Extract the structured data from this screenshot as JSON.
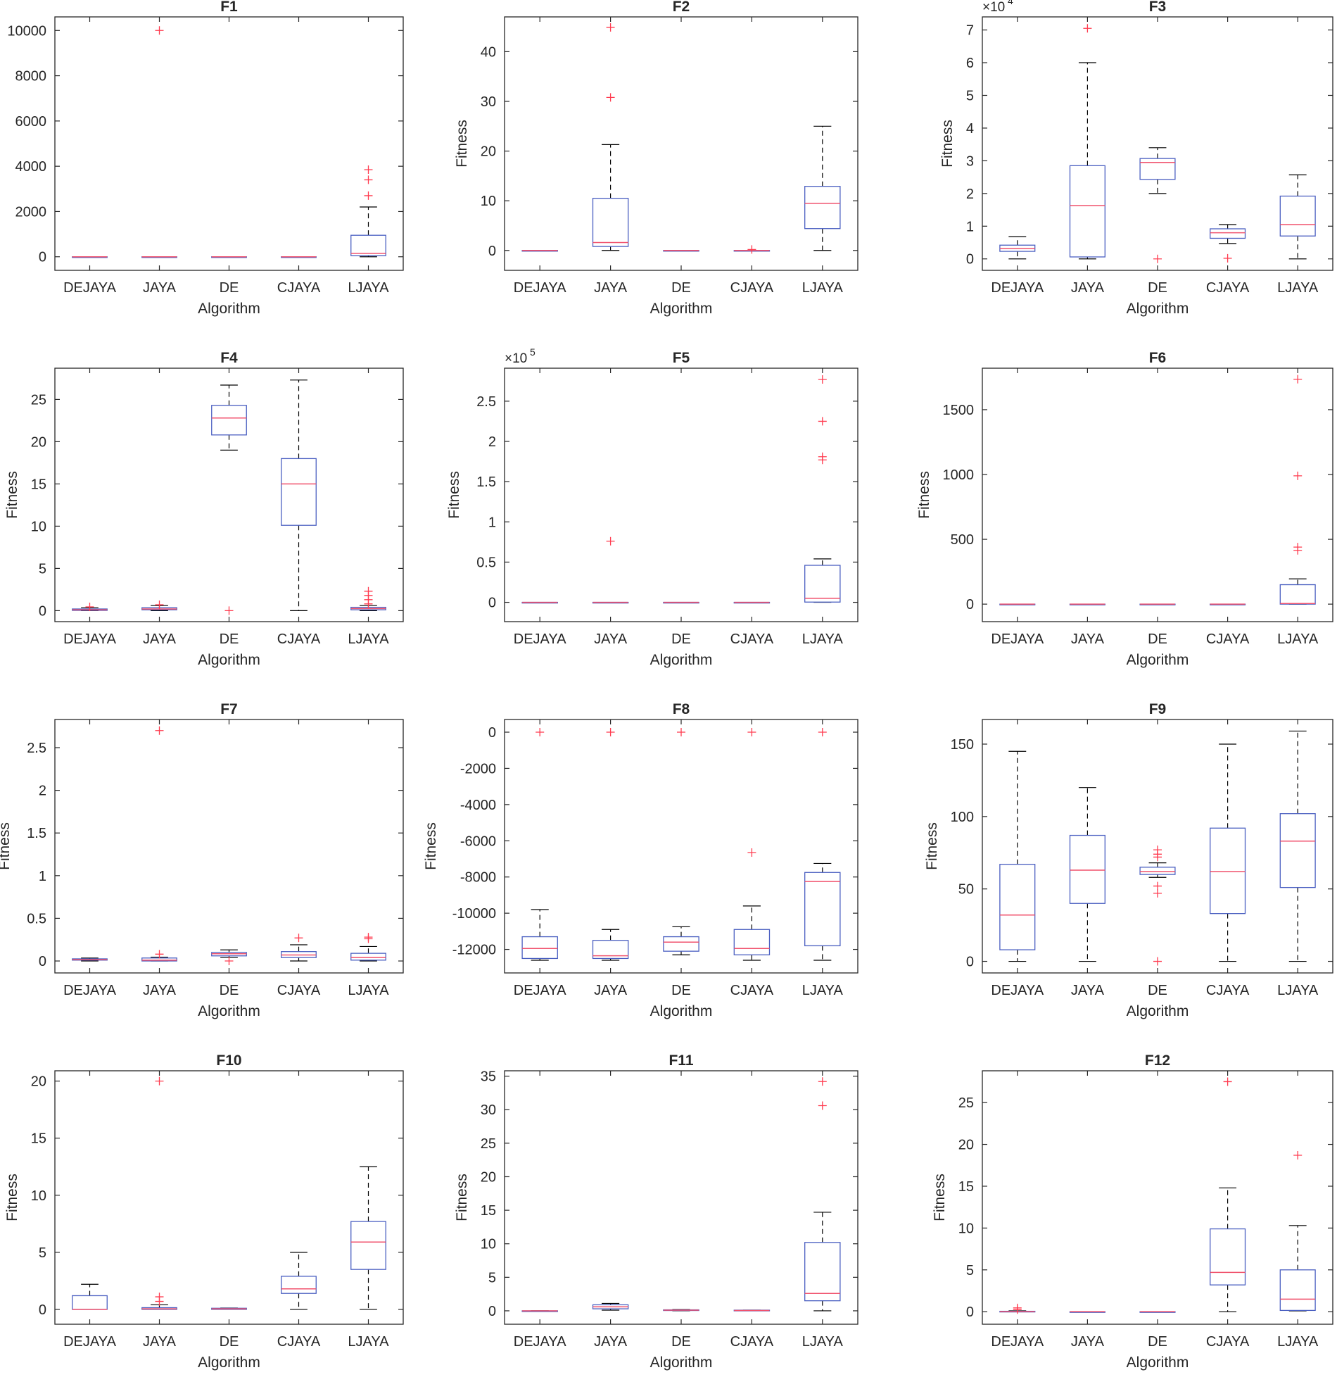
{
  "figure": {
    "xlabel": "Algorithm",
    "ylabel": "Fitness",
    "categories": [
      "DEJAYA",
      "JAYA",
      "DE",
      "CJAYA",
      "LJAYA"
    ]
  },
  "colors": {
    "box": "#4a5fc1",
    "median": "#f0526d",
    "outlier": "#ff3b4f",
    "whisker": "#000000",
    "axis": "#262626"
  },
  "chart_data": [
    {
      "type": "box",
      "title": "F1",
      "xlabel": "Algorithm",
      "ylabel": "Fitness",
      "categories": [
        "DEJAYA",
        "JAYA",
        "DE",
        "CJAYA",
        "LJAYA"
      ],
      "ylim": [
        -600,
        10600
      ],
      "yticks": [
        0,
        2000,
        4000,
        6000,
        8000,
        10000
      ],
      "ytick_labels": [
        "0",
        "2000",
        "4000",
        "6000",
        "8000",
        "10000"
      ],
      "exponent": "",
      "boxes": [
        {
          "min": 0,
          "q1": 0,
          "median": 0,
          "q3": 0,
          "max": 0,
          "outliers": []
        },
        {
          "min": 0,
          "q1": 0,
          "median": 0,
          "q3": 0,
          "max": 0,
          "outliers": [
            10000
          ]
        },
        {
          "min": 0,
          "q1": 0,
          "median": 0,
          "q3": 0,
          "max": 0,
          "outliers": []
        },
        {
          "min": 0,
          "q1": 0,
          "median": 0,
          "q3": 0,
          "max": 0,
          "outliers": []
        },
        {
          "min": 0,
          "q1": 50,
          "median": 150,
          "q3": 950,
          "max": 2200,
          "outliers": [
            2700,
            3400,
            3850
          ]
        }
      ]
    },
    {
      "type": "box",
      "title": "F2",
      "xlabel": "Algorithm",
      "ylabel": "Fitness",
      "categories": [
        "DEJAYA",
        "JAYA",
        "DE",
        "CJAYA",
        "LJAYA"
      ],
      "ylim": [
        -4,
        47
      ],
      "yticks": [
        0,
        10,
        20,
        30,
        40
      ],
      "ytick_labels": [
        "0",
        "10",
        "20",
        "30",
        "40"
      ],
      "exponent": "",
      "boxes": [
        {
          "min": 0,
          "q1": 0,
          "median": 0,
          "q3": 0,
          "max": 0,
          "outliers": []
        },
        {
          "min": 0,
          "q1": 0.8,
          "median": 1.6,
          "q3": 10.5,
          "max": 21.3,
          "outliers": [
            30.8,
            44.9
          ]
        },
        {
          "min": 0,
          "q1": 0,
          "median": 0,
          "q3": 0,
          "max": 0,
          "outliers": []
        },
        {
          "min": 0,
          "q1": 0,
          "median": 0,
          "q3": 0,
          "max": 0,
          "outliers": [
            0.2
          ]
        },
        {
          "min": 0,
          "q1": 4.4,
          "median": 9.5,
          "q3": 12.9,
          "max": 25,
          "outliers": []
        }
      ]
    },
    {
      "type": "box",
      "title": "F3",
      "xlabel": "Algorithm",
      "ylabel": "Fitness",
      "categories": [
        "DEJAYA",
        "JAYA",
        "DE",
        "CJAYA",
        "LJAYA"
      ],
      "ylim": [
        -3500,
        74000
      ],
      "yticks": [
        0,
        10000,
        20000,
        30000,
        40000,
        50000,
        60000,
        70000
      ],
      "ytick_labels": [
        "0",
        "1",
        "2",
        "3",
        "4",
        "5",
        "6",
        "7"
      ],
      "exponent": "4",
      "boxes": [
        {
          "min": 0,
          "q1": 2300,
          "median": 3200,
          "q3": 4200,
          "max": 6800,
          "outliers": []
        },
        {
          "min": 0,
          "q1": 600,
          "median": 16300,
          "q3": 28500,
          "max": 60000,
          "outliers": [
            70500
          ]
        },
        {
          "min": 20000,
          "q1": 24300,
          "median": 29500,
          "q3": 30700,
          "max": 34000,
          "outliers": [
            0
          ]
        },
        {
          "min": 4700,
          "q1": 6300,
          "median": 8000,
          "q3": 9200,
          "max": 10500,
          "outliers": [
            200
          ]
        },
        {
          "min": 0,
          "q1": 7000,
          "median": 10500,
          "q3": 19200,
          "max": 25700,
          "outliers": []
        }
      ]
    },
    {
      "type": "box",
      "title": "F4",
      "xlabel": "Algorithm",
      "ylabel": "Fitness",
      "categories": [
        "DEJAYA",
        "JAYA",
        "DE",
        "CJAYA",
        "LJAYA"
      ],
      "ylim": [
        -1.3,
        28.7
      ],
      "yticks": [
        0,
        5,
        10,
        15,
        20,
        25
      ],
      "ytick_labels": [
        "0",
        "5",
        "10",
        "15",
        "20",
        "25"
      ],
      "exponent": "",
      "boxes": [
        {
          "min": 0,
          "q1": 0.03,
          "median": 0.1,
          "q3": 0.2,
          "max": 0.35,
          "outliers": [
            0.45
          ]
        },
        {
          "min": 0,
          "q1": 0.1,
          "median": 0.2,
          "q3": 0.35,
          "max": 0.6,
          "outliers": [
            0.7
          ]
        },
        {
          "min": 19,
          "q1": 20.8,
          "median": 22.8,
          "q3": 24.3,
          "max": 26.7,
          "outliers": [
            0
          ]
        },
        {
          "min": 0,
          "q1": 10.1,
          "median": 15,
          "q3": 18,
          "max": 27.3,
          "outliers": []
        },
        {
          "min": 0,
          "q1": 0.1,
          "median": 0.25,
          "q3": 0.4,
          "max": 0.6,
          "outliers": [
            0.8,
            1.3,
            1.8,
            2.3
          ]
        }
      ]
    },
    {
      "type": "box",
      "title": "F5",
      "xlabel": "Algorithm",
      "ylabel": "Fitness",
      "categories": [
        "DEJAYA",
        "JAYA",
        "DE",
        "CJAYA",
        "LJAYA"
      ],
      "ylim": [
        -24000,
        291000
      ],
      "yticks": [
        0,
        50000,
        100000,
        150000,
        200000,
        250000
      ],
      "ytick_labels": [
        "0",
        "0.5",
        "1",
        "1.5",
        "2",
        "2.5"
      ],
      "exponent": "5",
      "boxes": [
        {
          "min": 0,
          "q1": 0,
          "median": 0,
          "q3": 0,
          "max": 0,
          "outliers": []
        },
        {
          "min": 0,
          "q1": 0,
          "median": 0,
          "q3": 0,
          "max": 0,
          "outliers": [
            76000
          ]
        },
        {
          "min": 0,
          "q1": 0,
          "median": 0,
          "q3": 0,
          "max": 0,
          "outliers": []
        },
        {
          "min": 0,
          "q1": 0,
          "median": 0,
          "q3": 0,
          "max": 0,
          "outliers": []
        },
        {
          "min": 0,
          "q1": 300,
          "median": 5000,
          "q3": 46000,
          "max": 54000,
          "outliers": [
            177000,
            181000,
            225000,
            277000
          ]
        }
      ]
    },
    {
      "type": "box",
      "title": "F6",
      "xlabel": "Algorithm",
      "ylabel": "Fitness",
      "categories": [
        "DEJAYA",
        "JAYA",
        "DE",
        "CJAYA",
        "LJAYA"
      ],
      "ylim": [
        -135,
        1820
      ],
      "yticks": [
        0,
        500,
        1000,
        1500
      ],
      "ytick_labels": [
        "0",
        "500",
        "1000",
        "1500"
      ],
      "exponent": "",
      "boxes": [
        {
          "min": 0,
          "q1": 0,
          "median": 0,
          "q3": 0,
          "max": 0,
          "outliers": []
        },
        {
          "min": 0,
          "q1": 0,
          "median": 0,
          "q3": 0,
          "max": 0,
          "outliers": []
        },
        {
          "min": 0,
          "q1": 0,
          "median": 0,
          "q3": 0,
          "max": 0,
          "outliers": []
        },
        {
          "min": 0,
          "q1": 0,
          "median": 0,
          "q3": 0,
          "max": 0,
          "outliers": []
        },
        {
          "min": 0,
          "q1": 0,
          "median": 5,
          "q3": 150,
          "max": 195,
          "outliers": [
            415,
            440,
            990,
            1735
          ]
        }
      ]
    },
    {
      "type": "box",
      "title": "F7",
      "xlabel": "Algorithm",
      "ylabel": "Fitness",
      "categories": [
        "DEJAYA",
        "JAYA",
        "DE",
        "CJAYA",
        "LJAYA"
      ],
      "ylim": [
        -0.14,
        2.83
      ],
      "yticks": [
        0,
        0.5,
        1,
        1.5,
        2,
        2.5
      ],
      "ytick_labels": [
        "0",
        "0.5",
        "1",
        "1.5",
        "2",
        "2.5"
      ],
      "exponent": "",
      "boxes": [
        {
          "min": 0,
          "q1": 0.01,
          "median": 0.015,
          "q3": 0.025,
          "max": 0.035,
          "outliers": []
        },
        {
          "min": 0,
          "q1": 0,
          "median": 0.01,
          "q3": 0.035,
          "max": 0.045,
          "outliers": [
            0.08,
            2.7
          ]
        },
        {
          "min": 0.04,
          "q1": 0.06,
          "median": 0.085,
          "q3": 0.1,
          "max": 0.13,
          "outliers": [
            0
          ]
        },
        {
          "min": 0,
          "q1": 0.04,
          "median": 0.07,
          "q3": 0.11,
          "max": 0.19,
          "outliers": [
            0.27
          ]
        },
        {
          "min": 0,
          "q1": 0.01,
          "median": 0.04,
          "q3": 0.09,
          "max": 0.17,
          "outliers": [
            0.26,
            0.28
          ]
        }
      ]
    },
    {
      "type": "box",
      "title": "F8",
      "xlabel": "Algorithm",
      "ylabel": "Fitness",
      "categories": [
        "DEJAYA",
        "JAYA",
        "DE",
        "CJAYA",
        "LJAYA"
      ],
      "ylim": [
        -13300,
        700
      ],
      "yticks": [
        -12000,
        -10000,
        -8000,
        -6000,
        -4000,
        -2000,
        0
      ],
      "ytick_labels": [
        "-12000",
        "-10000",
        "-8000",
        "-6000",
        "-4000",
        "-2000",
        "0"
      ],
      "exponent": "",
      "boxes": [
        {
          "min": -12600,
          "q1": -12500,
          "median": -11950,
          "q3": -11300,
          "max": -9800,
          "outliers": [
            0
          ]
        },
        {
          "min": -12600,
          "q1": -12500,
          "median": -12350,
          "q3": -11500,
          "max": -10900,
          "outliers": [
            0
          ]
        },
        {
          "min": -12300,
          "q1": -12100,
          "median": -11600,
          "q3": -11300,
          "max": -10750,
          "outliers": [
            0
          ]
        },
        {
          "min": -12600,
          "q1": -12300,
          "median": -11950,
          "q3": -10900,
          "max": -9600,
          "outliers": [
            -6650,
            0
          ]
        },
        {
          "min": -12600,
          "q1": -11800,
          "median": -8250,
          "q3": -7750,
          "max": -7250,
          "outliers": [
            0
          ]
        }
      ]
    },
    {
      "type": "box",
      "title": "F9",
      "xlabel": "Algorithm",
      "ylabel": "Fitness",
      "categories": [
        "DEJAYA",
        "JAYA",
        "DE",
        "CJAYA",
        "LJAYA"
      ],
      "ylim": [
        -8,
        167
      ],
      "yticks": [
        0,
        50,
        100,
        150
      ],
      "ytick_labels": [
        "0",
        "50",
        "100",
        "150"
      ],
      "exponent": "",
      "boxes": [
        {
          "min": 0,
          "q1": 8,
          "median": 32,
          "q3": 67,
          "max": 145,
          "outliers": []
        },
        {
          "min": 0,
          "q1": 40,
          "median": 63,
          "q3": 87,
          "max": 120,
          "outliers": []
        },
        {
          "min": 58,
          "q1": 60,
          "median": 62,
          "q3": 65,
          "max": 68,
          "outliers": [
            0,
            47,
            52,
            72,
            74,
            77
          ]
        },
        {
          "min": 0,
          "q1": 33,
          "median": 62,
          "q3": 92,
          "max": 150,
          "outliers": []
        },
        {
          "min": 0,
          "q1": 51,
          "median": 83,
          "q3": 102,
          "max": 159,
          "outliers": []
        }
      ]
    },
    {
      "type": "box",
      "title": "F10",
      "xlabel": "Algorithm",
      "ylabel": "Fitness",
      "categories": [
        "DEJAYA",
        "JAYA",
        "DE",
        "CJAYA",
        "LJAYA"
      ],
      "ylim": [
        -1.3,
        20.9
      ],
      "yticks": [
        0,
        5,
        10,
        15,
        20
      ],
      "ytick_labels": [
        "0",
        "5",
        "10",
        "15",
        "20"
      ],
      "exponent": "",
      "boxes": [
        {
          "min": 0,
          "q1": 0,
          "median": 0,
          "q3": 1.2,
          "max": 2.2,
          "outliers": []
        },
        {
          "min": 0,
          "q1": 0,
          "median": 0.05,
          "q3": 0.15,
          "max": 0.4,
          "outliers": [
            0.7,
            1.1,
            20
          ]
        },
        {
          "min": 0,
          "q1": 0,
          "median": 0.05,
          "q3": 0.1,
          "max": 0.12,
          "outliers": []
        },
        {
          "min": 0,
          "q1": 1.4,
          "median": 1.8,
          "q3": 2.9,
          "max": 5,
          "outliers": []
        },
        {
          "min": 0,
          "q1": 3.5,
          "median": 5.9,
          "q3": 7.7,
          "max": 12.5,
          "outliers": []
        }
      ]
    },
    {
      "type": "box",
      "title": "F11",
      "xlabel": "Algorithm",
      "ylabel": "Fitness",
      "categories": [
        "DEJAYA",
        "JAYA",
        "DE",
        "CJAYA",
        "LJAYA"
      ],
      "ylim": [
        -2,
        35.8
      ],
      "yticks": [
        0,
        5,
        10,
        15,
        20,
        25,
        30,
        35
      ],
      "ytick_labels": [
        "0",
        "5",
        "10",
        "15",
        "20",
        "25",
        "30",
        "35"
      ],
      "exponent": "",
      "boxes": [
        {
          "min": 0,
          "q1": 0,
          "median": 0,
          "q3": 0,
          "max": 0,
          "outliers": []
        },
        {
          "min": 0.1,
          "q1": 0.3,
          "median": 0.6,
          "q3": 0.9,
          "max": 1.1,
          "outliers": []
        },
        {
          "min": 0,
          "q1": 0.05,
          "median": 0.1,
          "q3": 0.15,
          "max": 0.2,
          "outliers": []
        },
        {
          "min": 0,
          "q1": 0,
          "median": 0.05,
          "q3": 0.1,
          "max": 0.1,
          "outliers": []
        },
        {
          "min": 0,
          "q1": 1.5,
          "median": 2.6,
          "q3": 10.2,
          "max": 14.7,
          "outliers": [
            30.6,
            34.2
          ]
        }
      ]
    },
    {
      "type": "box",
      "title": "F12",
      "xlabel": "Algorithm",
      "ylabel": "Fitness",
      "categories": [
        "DEJAYA",
        "JAYA",
        "DE",
        "CJAYA",
        "LJAYA"
      ],
      "ylim": [
        -1.5,
        28.8
      ],
      "yticks": [
        0,
        5,
        10,
        15,
        20,
        25
      ],
      "ytick_labels": [
        "0",
        "5",
        "10",
        "15",
        "20",
        "25"
      ],
      "exponent": "",
      "boxes": [
        {
          "min": 0,
          "q1": 0,
          "median": 0,
          "q3": 0.05,
          "max": 0.1,
          "outliers": [
            0.25,
            0.45
          ]
        },
        {
          "min": 0,
          "q1": 0,
          "median": 0,
          "q3": 0,
          "max": 0,
          "outliers": []
        },
        {
          "min": 0,
          "q1": 0,
          "median": 0,
          "q3": 0,
          "max": 0,
          "outliers": []
        },
        {
          "min": 0,
          "q1": 3.2,
          "median": 4.7,
          "q3": 9.9,
          "max": 14.8,
          "outliers": [
            27.5
          ]
        },
        {
          "min": 0.1,
          "q1": 0.15,
          "median": 1.5,
          "q3": 5,
          "max": 10.3,
          "outliers": [
            18.7
          ]
        }
      ]
    }
  ]
}
